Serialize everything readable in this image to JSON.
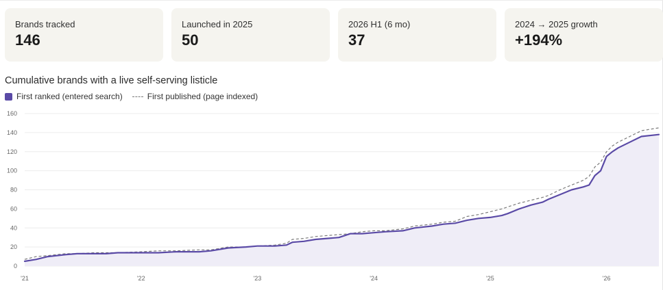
{
  "stats": [
    {
      "label": "Brands tracked",
      "value": "146"
    },
    {
      "label": "Launched in 2025",
      "value": "50"
    },
    {
      "label": "2026 H1 (6 mo)",
      "value": "37"
    },
    {
      "label": "2024 → 2025 growth",
      "value": "+194%"
    }
  ],
  "chart_title": "Cumulative brands with a live self-serving listicle",
  "legend": {
    "ranked": "First ranked (entered search)",
    "published": "First published (page indexed)"
  },
  "colors": {
    "ranked": "#5a4aa6",
    "published": "#7a7a7a",
    "fill": "#efedf7",
    "grid": "#ececec"
  },
  "chart_data": {
    "type": "line",
    "xlabel": "",
    "ylabel": "",
    "ylim": [
      0,
      160
    ],
    "yticks": [
      0,
      20,
      40,
      60,
      80,
      100,
      120,
      140,
      160
    ],
    "xlim": [
      2021.0,
      2026.45
    ],
    "xticks": [
      {
        "value": 2021,
        "label": "'21"
      },
      {
        "value": 2022,
        "label": "'22"
      },
      {
        "value": 2023,
        "label": "'23"
      },
      {
        "value": 2024,
        "label": "'24"
      },
      {
        "value": 2025,
        "label": "'25"
      },
      {
        "value": 2026,
        "label": "'26"
      }
    ],
    "series": [
      {
        "name": "First ranked (entered search)",
        "style": "solid",
        "points": [
          [
            2021.0,
            5
          ],
          [
            2021.1,
            7
          ],
          [
            2021.2,
            10
          ],
          [
            2021.35,
            12
          ],
          [
            2021.45,
            13
          ],
          [
            2021.6,
            13
          ],
          [
            2021.7,
            13
          ],
          [
            2021.8,
            14
          ],
          [
            2022.0,
            14
          ],
          [
            2022.15,
            14
          ],
          [
            2022.3,
            15
          ],
          [
            2022.5,
            15
          ],
          [
            2022.6,
            16
          ],
          [
            2022.75,
            19
          ],
          [
            2022.9,
            20
          ],
          [
            2023.0,
            21
          ],
          [
            2023.15,
            21
          ],
          [
            2023.25,
            22
          ],
          [
            2023.3,
            25
          ],
          [
            2023.4,
            26
          ],
          [
            2023.5,
            28
          ],
          [
            2023.6,
            29
          ],
          [
            2023.7,
            30
          ],
          [
            2023.8,
            34
          ],
          [
            2023.9,
            34
          ],
          [
            2024.0,
            35
          ],
          [
            2024.1,
            36
          ],
          [
            2024.25,
            37
          ],
          [
            2024.35,
            40
          ],
          [
            2024.5,
            42
          ],
          [
            2024.6,
            44
          ],
          [
            2024.7,
            45
          ],
          [
            2024.8,
            48
          ],
          [
            2024.9,
            50
          ],
          [
            2025.0,
            51
          ],
          [
            2025.1,
            53
          ],
          [
            2025.15,
            55
          ],
          [
            2025.25,
            60
          ],
          [
            2025.35,
            64
          ],
          [
            2025.45,
            67
          ],
          [
            2025.5,
            70
          ],
          [
            2025.6,
            75
          ],
          [
            2025.7,
            80
          ],
          [
            2025.8,
            83
          ],
          [
            2025.85,
            85
          ],
          [
            2025.9,
            95
          ],
          [
            2025.95,
            100
          ],
          [
            2026.0,
            115
          ],
          [
            2026.05,
            120
          ],
          [
            2026.1,
            124
          ],
          [
            2026.2,
            130
          ],
          [
            2026.3,
            136
          ],
          [
            2026.45,
            138
          ]
        ]
      },
      {
        "name": "First published (page indexed)",
        "style": "dashed",
        "points": [
          [
            2021.0,
            7
          ],
          [
            2021.1,
            10
          ],
          [
            2021.2,
            11
          ],
          [
            2021.35,
            13
          ],
          [
            2021.45,
            13
          ],
          [
            2021.6,
            14
          ],
          [
            2021.7,
            14
          ],
          [
            2021.8,
            14
          ],
          [
            2022.0,
            15
          ],
          [
            2022.15,
            16
          ],
          [
            2022.3,
            16
          ],
          [
            2022.5,
            17
          ],
          [
            2022.6,
            17
          ],
          [
            2022.75,
            20
          ],
          [
            2022.9,
            20
          ],
          [
            2023.0,
            21
          ],
          [
            2023.15,
            22
          ],
          [
            2023.25,
            24
          ],
          [
            2023.3,
            28
          ],
          [
            2023.4,
            29
          ],
          [
            2023.5,
            31
          ],
          [
            2023.6,
            32
          ],
          [
            2023.7,
            33
          ],
          [
            2023.8,
            34
          ],
          [
            2023.9,
            36
          ],
          [
            2024.0,
            37
          ],
          [
            2024.1,
            37
          ],
          [
            2024.25,
            39
          ],
          [
            2024.35,
            42
          ],
          [
            2024.5,
            44
          ],
          [
            2024.6,
            46
          ],
          [
            2024.7,
            47
          ],
          [
            2024.8,
            52
          ],
          [
            2024.9,
            54
          ],
          [
            2025.0,
            57
          ],
          [
            2025.1,
            60
          ],
          [
            2025.15,
            62
          ],
          [
            2025.25,
            66
          ],
          [
            2025.35,
            69
          ],
          [
            2025.45,
            72
          ],
          [
            2025.5,
            74
          ],
          [
            2025.6,
            80
          ],
          [
            2025.7,
            85
          ],
          [
            2025.8,
            90
          ],
          [
            2025.85,
            94
          ],
          [
            2025.9,
            104
          ],
          [
            2025.95,
            109
          ],
          [
            2026.0,
            120
          ],
          [
            2026.05,
            126
          ],
          [
            2026.1,
            130
          ],
          [
            2026.2,
            136
          ],
          [
            2026.3,
            142
          ],
          [
            2026.45,
            145
          ]
        ]
      }
    ]
  }
}
